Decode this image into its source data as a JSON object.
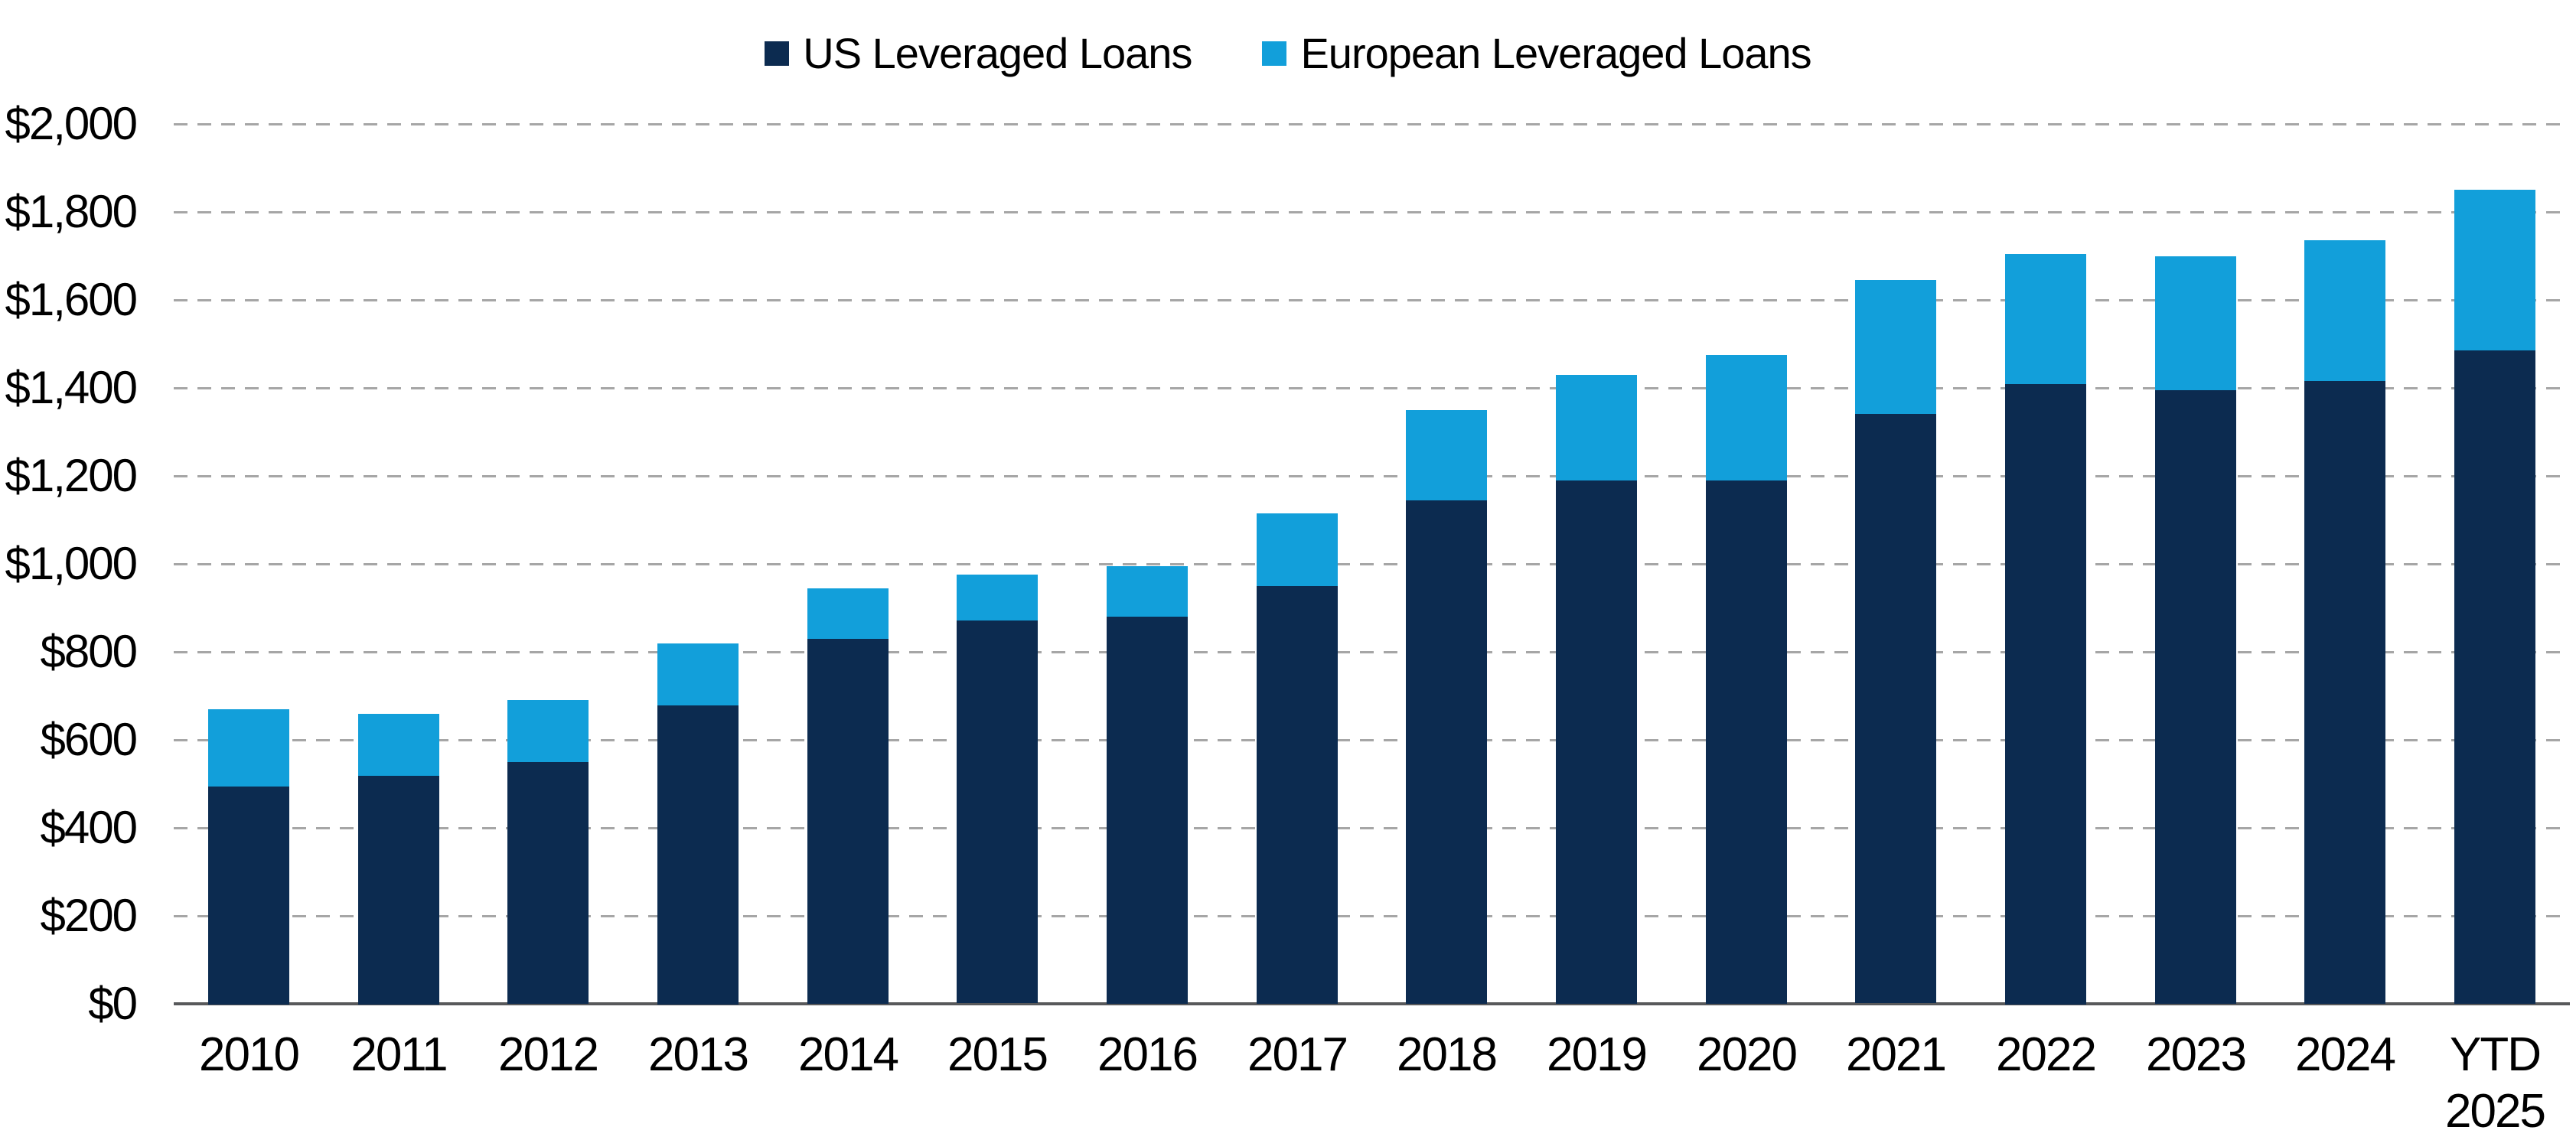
{
  "chart_data": {
    "type": "bar",
    "stacked": true,
    "categories": [
      "2010",
      "2011",
      "2012",
      "2013",
      "2014",
      "2015",
      "2016",
      "2017",
      "2018",
      "2019",
      "2020",
      "2021",
      "2022",
      "2023",
      "2024",
      "YTD\n2025"
    ],
    "series": [
      {
        "name": "US Leveraged Loans",
        "color": "#0c2b50",
        "values": [
          495,
          520,
          550,
          680,
          830,
          870,
          880,
          950,
          1145,
          1190,
          1190,
          1340,
          1410,
          1395,
          1415,
          1485
        ]
      },
      {
        "name": "European Leveraged Loans",
        "color": "#129fda",
        "values": [
          175,
          140,
          140,
          140,
          115,
          105,
          115,
          165,
          205,
          240,
          285,
          305,
          295,
          305,
          320,
          365
        ]
      }
    ],
    "totals": [
      670,
      660,
      690,
      820,
      945,
      975,
      995,
      1115,
      1350,
      1430,
      1475,
      1645,
      1705,
      1700,
      1735,
      1850
    ],
    "y_ticks": [
      "$0",
      "$200",
      "$400",
      "$600",
      "$800",
      "$1,000",
      "$1,200",
      "$1,400",
      "$1,600",
      "$1,800",
      "$2,000"
    ],
    "ylim": [
      0,
      2000
    ],
    "y_tick_step": 200,
    "grid": "horizontal-dashed",
    "gridline_color": "#a6a6a6",
    "axis_line_color": "#58595b",
    "legend_position": "top-center",
    "separator_color": "#ffffff"
  }
}
